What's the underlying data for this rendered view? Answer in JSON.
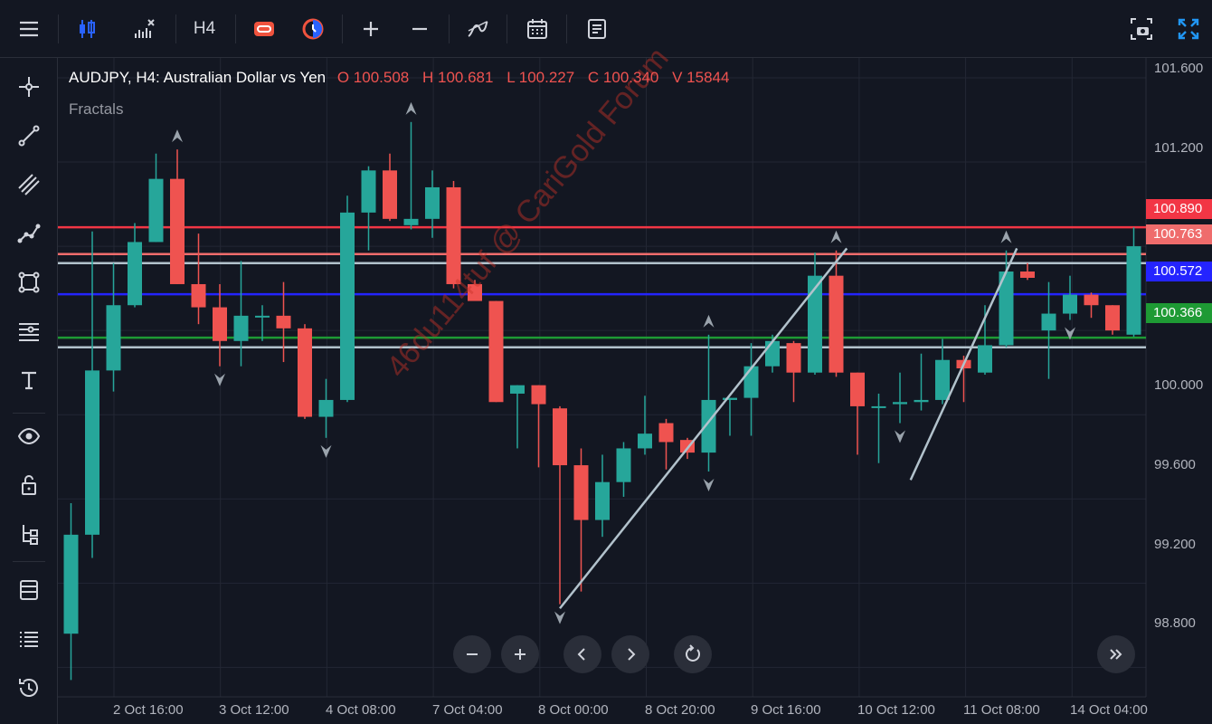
{
  "toolbar": {
    "menu_icon": "hamburger-menu-icon",
    "chart_type_icon": "candlestick-icon",
    "indicators_icon": "indicators-icon",
    "timeframe_label": "H4",
    "compare_icon": "compare-icon",
    "session_icon": "session-icon",
    "zoom_in_icon": "plus-icon",
    "zoom_out_icon": "minus-icon",
    "drawing_icon": "curve-icon",
    "calendar_icon": "calendar-icon",
    "notes_icon": "notes-icon",
    "screenshot_icon": "camera-icon",
    "fullscreen_icon": "fullscreen-icon",
    "accent_color": "#2962ff"
  },
  "sidebar": {
    "items": [
      {
        "icon": "crosshair-icon"
      },
      {
        "icon": "trend-line-icon"
      },
      {
        "icon": "parallel-channel-icon"
      },
      {
        "icon": "polyline-icon"
      },
      {
        "icon": "rectangle-shape-icon"
      },
      {
        "icon": "fibonacci-icon"
      },
      {
        "icon": "text-tool-icon"
      },
      {
        "icon": "eye-icon"
      },
      {
        "icon": "lock-icon"
      },
      {
        "icon": "object-tree-icon"
      },
      {
        "icon": "templates-icon"
      },
      {
        "icon": "list-icon"
      },
      {
        "icon": "history-icon"
      }
    ]
  },
  "legend": {
    "symbol": "AUDJPY, H4: Australian Dollar vs Yen",
    "open": "O 100.508",
    "high": "H 100.681",
    "low": "L 100.227",
    "close": "C 100.340",
    "volume": "V 15844",
    "indicator": "Fractals"
  },
  "watermark": "46du114tuf @ CariGold Forum",
  "navigation": {
    "zoom_out_icon": "minus-icon",
    "zoom_in_icon": "plus-icon",
    "scroll_left_icon": "chevron-left-icon",
    "scroll_right_icon": "chevron-right-icon",
    "reset_icon": "reset-icon",
    "go_latest_icon": "double-chevron-right-icon"
  },
  "price_axis": {
    "labels": [
      "101.600",
      "101.200",
      "100.000",
      "99.600",
      "99.200",
      "98.800"
    ],
    "tags": [
      {
        "text": "100.890",
        "color": "#f23645"
      },
      {
        "text": "100.763",
        "color": "#ef6c6c"
      },
      {
        "text": "100.572",
        "color": "#2424ff"
      },
      {
        "text": "100.366",
        "color": "#1e9a34"
      }
    ]
  },
  "time_axis": {
    "labels": [
      "2 Oct 16:00",
      "3 Oct 12:00",
      "4 Oct 08:00",
      "7 Oct 04:00",
      "8 Oct 00:00",
      "8 Oct 20:00",
      "9 Oct 16:00",
      "10 Oct 12:00",
      "11 Oct 08:00",
      "14 Oct 04:00"
    ]
  },
  "chart_data": {
    "type": "candlestick",
    "up_color": "#26a69a",
    "down_color": "#ef5350",
    "ylim": [
      98.66,
      101.66
    ],
    "candles": [
      {
        "o": 98.96,
        "h": 99.58,
        "l": 98.74,
        "c": 99.43
      },
      {
        "o": 99.43,
        "h": 100.87,
        "l": 99.32,
        "c": 100.21
      },
      {
        "o": 100.21,
        "h": 100.72,
        "l": 100.11,
        "c": 100.52
      },
      {
        "o": 100.52,
        "h": 100.91,
        "l": 100.51,
        "c": 100.82
      },
      {
        "o": 100.82,
        "h": 101.24,
        "l": 100.82,
        "c": 101.12
      },
      {
        "o": 101.12,
        "h": 101.26,
        "l": 100.62,
        "c": 100.62
      },
      {
        "o": 100.62,
        "h": 100.86,
        "l": 100.43,
        "c": 100.51
      },
      {
        "o": 100.51,
        "h": 100.62,
        "l": 100.23,
        "c": 100.35
      },
      {
        "o": 100.35,
        "h": 100.73,
        "l": 100.23,
        "c": 100.47
      },
      {
        "o": 100.47,
        "h": 100.52,
        "l": 100.35,
        "c": 100.47
      },
      {
        "o": 100.47,
        "h": 100.63,
        "l": 100.25,
        "c": 100.41
      },
      {
        "o": 100.41,
        "h": 100.43,
        "l": 99.98,
        "c": 99.99
      },
      {
        "o": 99.99,
        "h": 100.17,
        "l": 99.89,
        "c": 100.07
      },
      {
        "o": 100.07,
        "h": 101.04,
        "l": 100.06,
        "c": 100.96
      },
      {
        "o": 100.96,
        "h": 101.18,
        "l": 100.78,
        "c": 101.16
      },
      {
        "o": 101.16,
        "h": 101.24,
        "l": 100.92,
        "c": 100.93
      },
      {
        "o": 100.9,
        "h": 101.39,
        "l": 100.88,
        "c": 100.93
      },
      {
        "o": 100.93,
        "h": 101.16,
        "l": 100.84,
        "c": 101.08
      },
      {
        "o": 101.08,
        "h": 101.11,
        "l": 100.6,
        "c": 100.62
      },
      {
        "o": 100.62,
        "h": 100.64,
        "l": 100.55,
        "c": 100.54
      },
      {
        "o": 100.54,
        "h": 100.54,
        "l": 100.06,
        "c": 100.06
      },
      {
        "o": 100.1,
        "h": 100.14,
        "l": 99.84,
        "c": 100.14
      },
      {
        "o": 100.14,
        "h": 100.14,
        "l": 99.75,
        "c": 100.05
      },
      {
        "o": 100.03,
        "h": 100.04,
        "l": 99.1,
        "c": 99.76
      },
      {
        "o": 99.76,
        "h": 99.84,
        "l": 99.16,
        "c": 99.5
      },
      {
        "o": 99.5,
        "h": 99.81,
        "l": 99.42,
        "c": 99.68
      },
      {
        "o": 99.68,
        "h": 99.87,
        "l": 99.61,
        "c": 99.84
      },
      {
        "o": 99.84,
        "h": 100.09,
        "l": 99.81,
        "c": 99.91
      },
      {
        "o": 99.96,
        "h": 99.98,
        "l": 99.74,
        "c": 99.87
      },
      {
        "o": 99.88,
        "h": 99.89,
        "l": 99.79,
        "c": 99.82
      },
      {
        "o": 99.82,
        "h": 100.38,
        "l": 99.73,
        "c": 100.07
      },
      {
        "o": 100.07,
        "h": 100.08,
        "l": 99.9,
        "c": 100.08
      },
      {
        "o": 100.08,
        "h": 100.34,
        "l": 99.9,
        "c": 100.23
      },
      {
        "o": 100.23,
        "h": 100.38,
        "l": 100.2,
        "c": 100.35
      },
      {
        "o": 100.34,
        "h": 100.35,
        "l": 100.06,
        "c": 100.2
      },
      {
        "o": 100.2,
        "h": 100.77,
        "l": 100.19,
        "c": 100.66
      },
      {
        "o": 100.66,
        "h": 100.78,
        "l": 100.18,
        "c": 100.2
      },
      {
        "o": 100.2,
        "h": 100.2,
        "l": 99.81,
        "c": 100.04
      },
      {
        "o": 100.04,
        "h": 100.1,
        "l": 99.77,
        "c": 100.04
      },
      {
        "o": 100.05,
        "h": 100.2,
        "l": 99.96,
        "c": 100.06
      },
      {
        "o": 100.06,
        "h": 100.29,
        "l": 100.02,
        "c": 100.07
      },
      {
        "o": 100.07,
        "h": 100.36,
        "l": 100.05,
        "c": 100.26
      },
      {
        "o": 100.26,
        "h": 100.28,
        "l": 100.06,
        "c": 100.22
      },
      {
        "o": 100.2,
        "h": 100.52,
        "l": 100.19,
        "c": 100.33
      },
      {
        "o": 100.33,
        "h": 100.78,
        "l": 100.32,
        "c": 100.68
      },
      {
        "o": 100.68,
        "h": 100.72,
        "l": 100.64,
        "c": 100.65
      },
      {
        "o": 100.4,
        "h": 100.63,
        "l": 100.17,
        "c": 100.48
      },
      {
        "o": 100.48,
        "h": 100.66,
        "l": 100.45,
        "c": 100.57
      },
      {
        "o": 100.57,
        "h": 100.58,
        "l": 100.46,
        "c": 100.52
      },
      {
        "o": 100.52,
        "h": 100.52,
        "l": 100.38,
        "c": 100.4
      },
      {
        "o": 100.38,
        "h": 100.89,
        "l": 100.37,
        "c": 100.8
      }
    ],
    "horizontal_lines": [
      {
        "value": 100.89,
        "color": "#f23645"
      },
      {
        "value": 100.763,
        "color": "#ef6c6c"
      },
      {
        "value": 100.72,
        "color": "#b2c2cc"
      },
      {
        "value": 100.572,
        "color": "#2424ff"
      },
      {
        "value": 100.366,
        "color": "#1e9a34"
      },
      {
        "value": 100.32,
        "color": "#b2c2cc"
      }
    ],
    "trend_lines": [
      {
        "from": [
          23,
          99.08
        ],
        "to": [
          36.5,
          100.79
        ],
        "color": "#b2c2cc"
      },
      {
        "from": [
          39.5,
          99.69
        ],
        "to": [
          44.5,
          100.79
        ],
        "color": "#b2c2cc"
      }
    ],
    "fractals_up": [
      5,
      16,
      30,
      36,
      44
    ],
    "fractals_down": [
      7,
      12,
      23,
      30,
      39,
      47
    ]
  }
}
